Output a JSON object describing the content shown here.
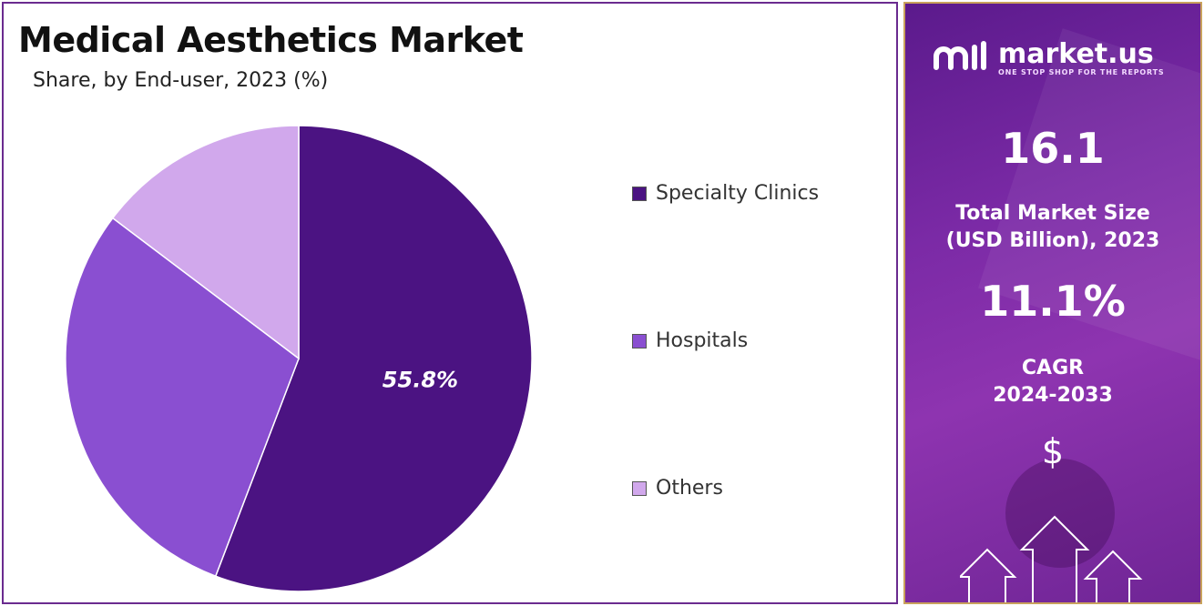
{
  "header": {
    "title": "Medical Aesthetics Market",
    "subtitle": "Share, by End-user, 2023 (%)"
  },
  "chart_data": {
    "type": "pie",
    "title": "Medical Aesthetics Market",
    "subtitle": "Share, by End-user, 2023 (%)",
    "categories": [
      "Specialty Clinics",
      "Hospitals",
      "Others"
    ],
    "values": [
      55.8,
      29.5,
      14.7
    ],
    "colors": [
      "#4b1382",
      "#8a4fd1",
      "#d1a8ec"
    ],
    "data_labels": [
      "55.8%",
      "",
      ""
    ],
    "legend_position": "right"
  },
  "legend": {
    "items": [
      {
        "label": "Specialty Clinics",
        "color": "#4b1382"
      },
      {
        "label": "Hospitals",
        "color": "#8a4fd1"
      },
      {
        "label": "Others",
        "color": "#d1a8ec"
      }
    ]
  },
  "sidebar": {
    "brand_name": "market.us",
    "brand_tagline": "ONE STOP SHOP FOR THE REPORTS",
    "market_size_value": "16.1",
    "market_size_label_line1": "Total Market Size",
    "market_size_label_line2": "(USD Billion), 2023",
    "cagr_value": "11.1%",
    "cagr_label_line1": "CAGR",
    "cagr_label_line2": "2024-2033",
    "currency_symbol": "$",
    "colors": {
      "panel": "#7b2aa6",
      "border": "#c9a25c"
    },
    "icons": [
      "market-us-logo-icon",
      "dollar-icon",
      "growth-arrows-icon"
    ]
  }
}
